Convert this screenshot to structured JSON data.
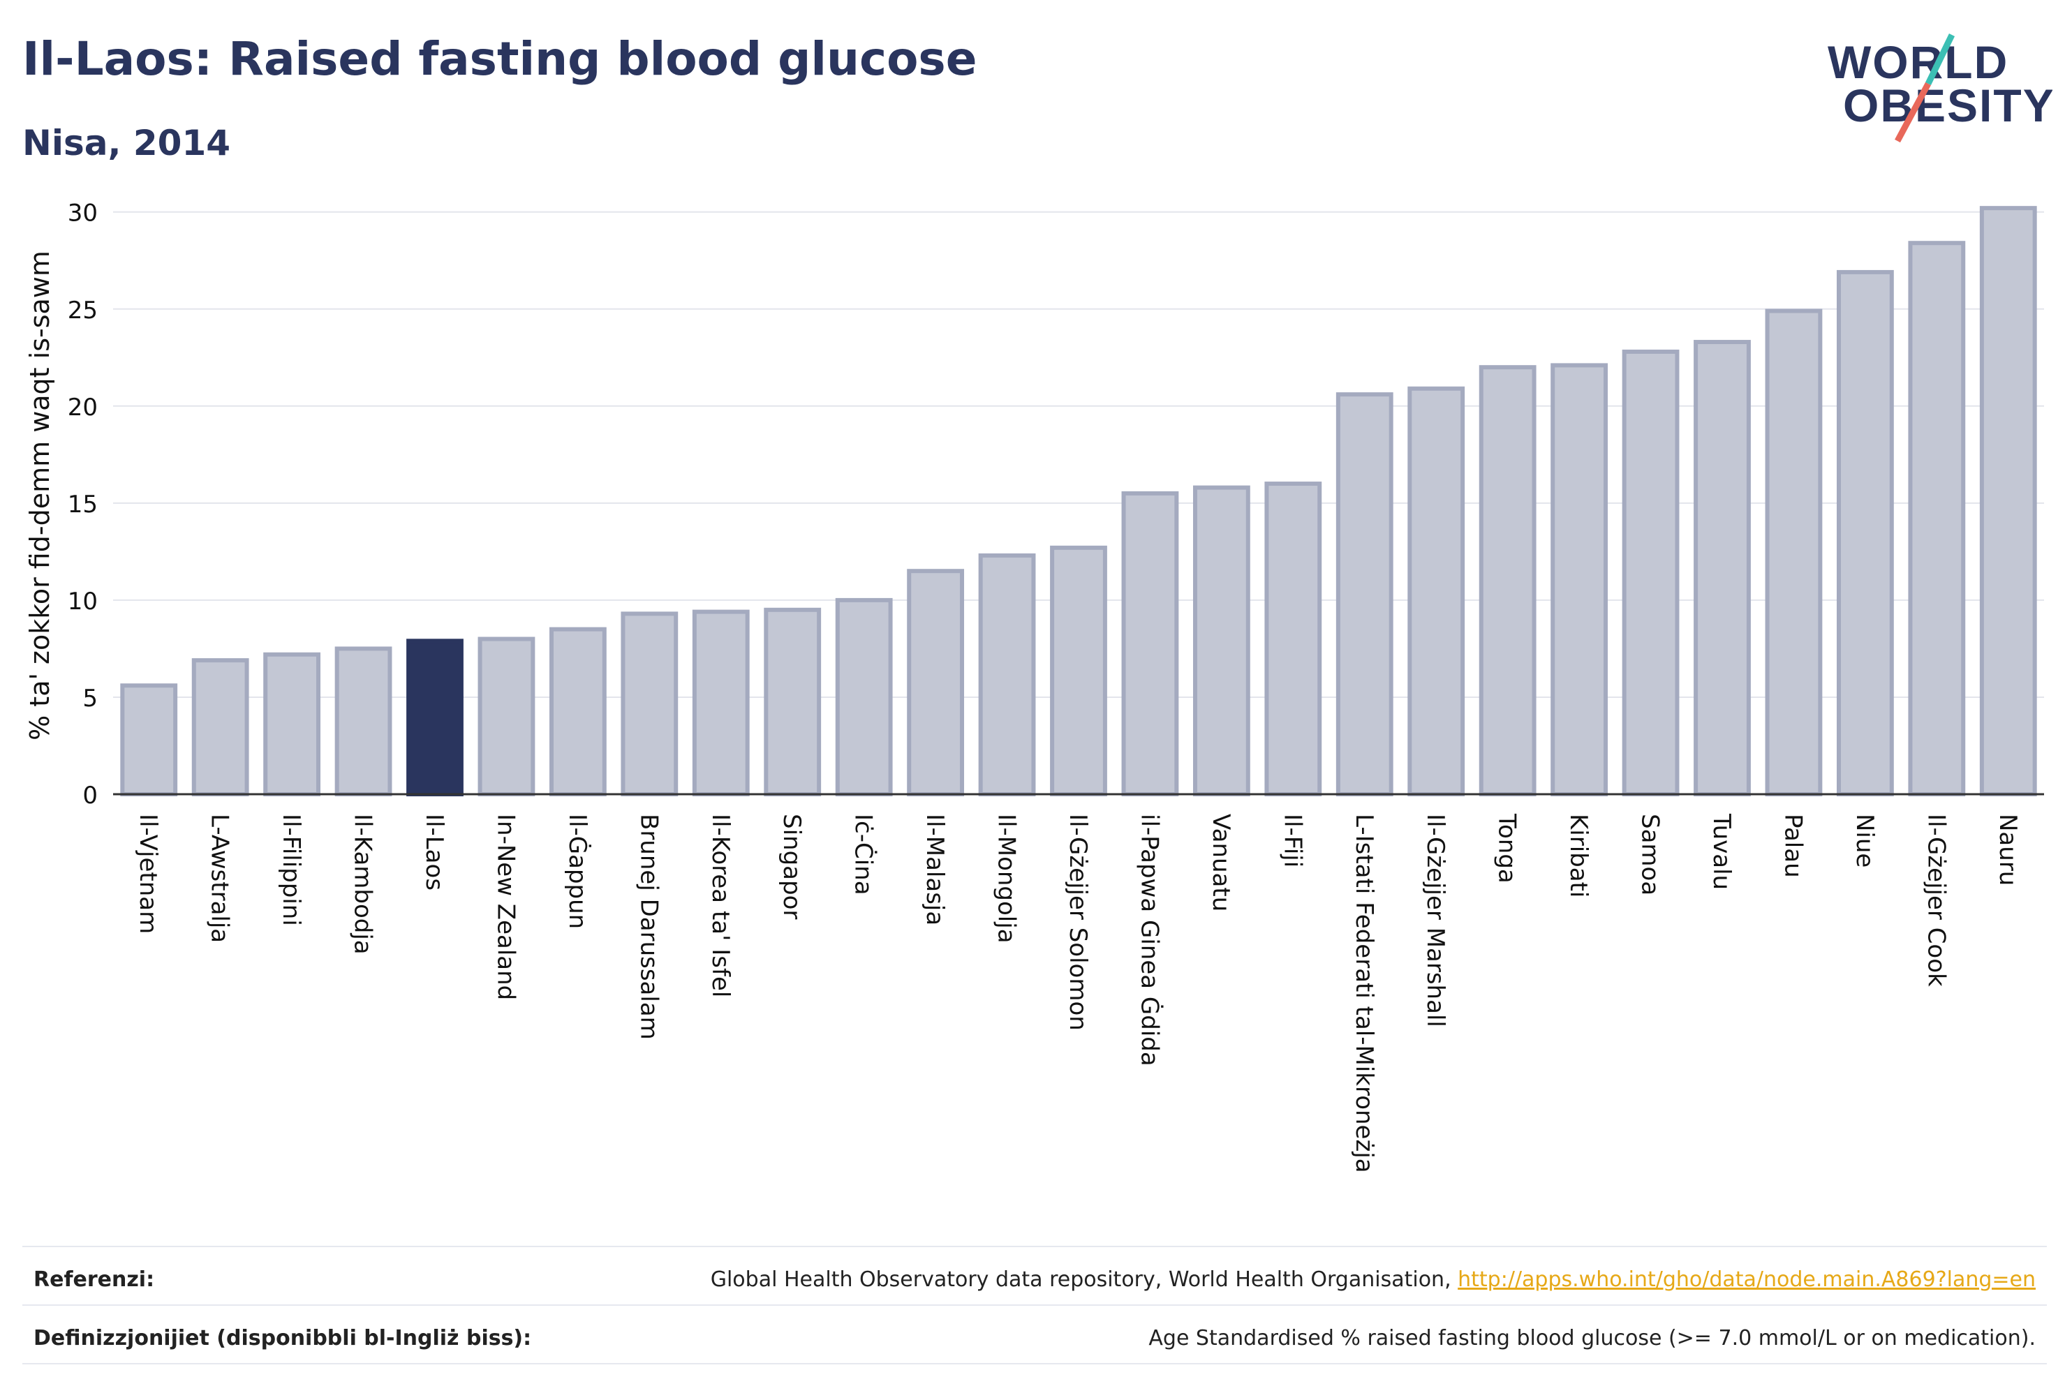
{
  "header": {
    "title": "Il-Laos: Raised fasting blood glucose",
    "subtitle": "Nisa, 2014",
    "logo_line1": "WORLD",
    "logo_line2": "OBESITY"
  },
  "chart_data": {
    "type": "bar",
    "ylabel": "% ta' zokkor fid-demm waqt is-sawm",
    "xlabel": "",
    "ylim": [
      0,
      31.5
    ],
    "yticks": [
      0,
      5,
      10,
      15,
      20,
      25,
      30
    ],
    "grid": true,
    "highlight_index": 4,
    "categories": [
      "Il-Vjetnam",
      "L-Awstralja",
      "Il-Filippini",
      "Il-Kambodja",
      "Il-Laos",
      "In-New Zealand",
      "Il-Ġappun",
      "Brunej Darussalam",
      "Il-Korea ta' Isfel",
      "Singapor",
      "Iċ-Ċina",
      "Il-Malasja",
      "Il-Mongolja",
      "Il-Gżejjer Solomon",
      "il-Papwa Ginea Ġdida",
      "Vanuatu",
      "Il-Fiji",
      "L-Istati Federati tal-Mikroneżja",
      "Il-Gżejjer Marshall",
      "Tonga",
      "Kiribati",
      "Samoa",
      "Tuvalu",
      "Palau",
      "Niue",
      "Il-Gżejjer Cook",
      "Nauru"
    ],
    "values": [
      5.6,
      6.9,
      7.2,
      7.5,
      7.9,
      8.0,
      8.5,
      9.3,
      9.4,
      9.5,
      10.0,
      11.5,
      12.3,
      12.7,
      15.5,
      15.8,
      16.0,
      20.6,
      20.9,
      22.0,
      22.1,
      22.8,
      23.3,
      24.9,
      26.9,
      28.4,
      30.2
    ],
    "colors": {
      "bar": "#c3c7d4",
      "bar_stroke": "#a4aabf",
      "highlight": "#2a355e",
      "axis": "#333333",
      "grid": "#e3e5ec"
    }
  },
  "footer": {
    "ref_label": "Referenzi:",
    "ref_text": "Global Health Observatory data repository, World Health Organisation, ",
    "ref_link": "http://apps.who.int/gho/data/node.main.A869?lang=en",
    "def_label": "Definizzjonijiet (disponibbli bl-Ingliż biss):",
    "def_text": "Age Standardised % raised fasting blood glucose (>= 7.0 mmol/L or on medication)."
  }
}
